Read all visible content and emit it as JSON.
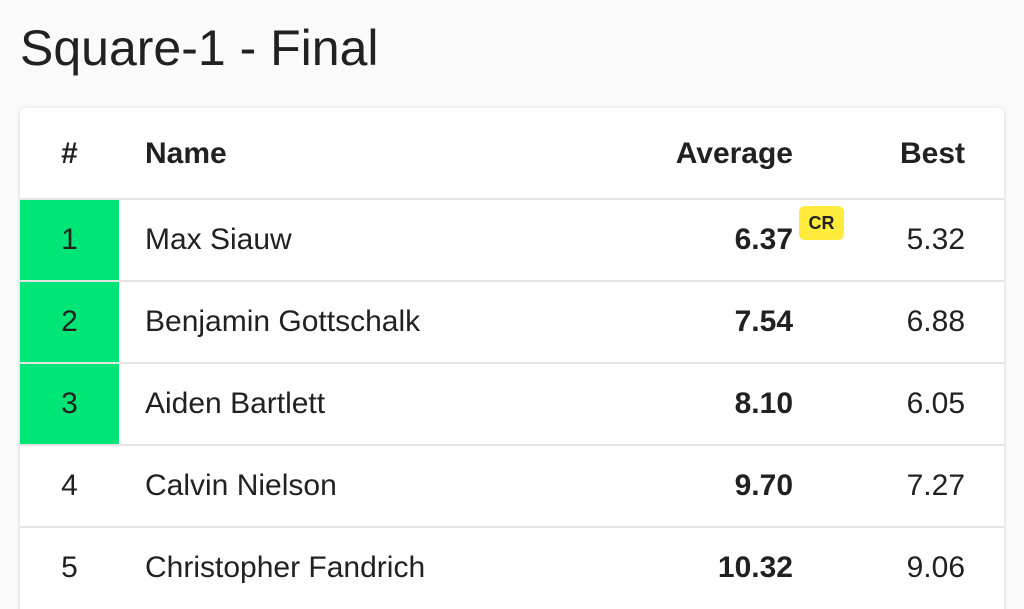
{
  "header": {
    "title": "Square-1 - Final"
  },
  "table": {
    "columns": [
      "#",
      "Name",
      "Average",
      "Best"
    ],
    "rows": [
      {
        "rank": 1,
        "name": "Max Siauw",
        "average": "6.37",
        "record": "CR",
        "best": "5.32"
      },
      {
        "rank": 2,
        "name": "Benjamin Gottschalk",
        "average": "7.54",
        "best": "6.88"
      },
      {
        "rank": 3,
        "name": "Aiden Bartlett",
        "average": "8.10",
        "best": "6.05"
      },
      {
        "rank": 4,
        "name": "Calvin Nielson",
        "average": "9.70",
        "best": "7.27"
      },
      {
        "rank": 5,
        "name": "Christopher Fandrich",
        "average": "10.32",
        "best": "9.06"
      }
    ]
  }
}
